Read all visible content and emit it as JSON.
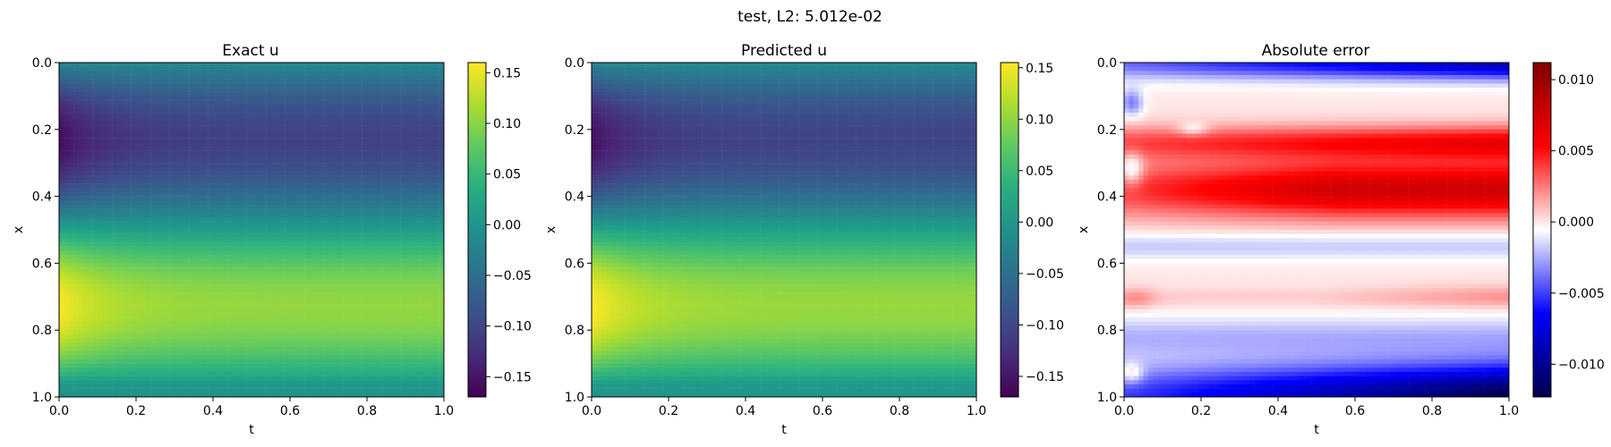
{
  "figure": {
    "suptitle": "test, L2: 5.012e-02"
  },
  "chart_data": [
    {
      "type": "heatmap",
      "title": "Exact u",
      "xlabel": "t",
      "ylabel": "x",
      "xlim": [
        0.0,
        1.0
      ],
      "ylim": [
        1.0,
        0.0
      ],
      "xticks": [
        "0.0",
        "0.2",
        "0.4",
        "0.6",
        "0.8",
        "1.0"
      ],
      "yticks": [
        "0.0",
        "0.2",
        "0.4",
        "0.6",
        "0.8",
        "1.0"
      ],
      "colormap": "viridis",
      "colorbar": {
        "range": [
          -0.17,
          0.16
        ],
        "ticks": [
          0.15,
          0.1,
          0.05,
          0.0,
          -0.05,
          -0.1,
          -0.15
        ],
        "tick_labels": [
          "0.15",
          "0.10",
          "0.05",
          "0.00",
          "−0.05",
          "−0.10",
          "−0.15"
        ]
      }
    },
    {
      "type": "heatmap",
      "title": "Predicted u",
      "xlabel": "t",
      "ylabel": "x",
      "xlim": [
        0.0,
        1.0
      ],
      "ylim": [
        1.0,
        0.0
      ],
      "xticks": [
        "0.0",
        "0.2",
        "0.4",
        "0.6",
        "0.8",
        "1.0"
      ],
      "yticks": [
        "0.0",
        "0.2",
        "0.4",
        "0.6",
        "0.8",
        "1.0"
      ],
      "colormap": "viridis",
      "colorbar": {
        "range": [
          -0.17,
          0.155
        ],
        "ticks": [
          0.15,
          0.1,
          0.05,
          0.0,
          -0.05,
          -0.1,
          -0.15
        ],
        "tick_labels": [
          "0.15",
          "0.10",
          "0.05",
          "0.00",
          "−0.05",
          "−0.10",
          "−0.15"
        ]
      }
    },
    {
      "type": "heatmap",
      "title": "Absolute error",
      "xlabel": "t",
      "ylabel": "x",
      "xlim": [
        0.0,
        1.0
      ],
      "ylim": [
        1.0,
        0.0
      ],
      "xticks": [
        "0.0",
        "0.2",
        "0.4",
        "0.6",
        "0.8",
        "1.0"
      ],
      "yticks": [
        "0.0",
        "0.2",
        "0.4",
        "0.6",
        "0.8",
        "1.0"
      ],
      "colormap": "seismic",
      "colorbar": {
        "range": [
          -0.0123,
          0.0112
        ],
        "ticks": [
          0.01,
          0.005,
          0.0,
          -0.005,
          -0.01
        ],
        "tick_labels": [
          "0.010",
          "0.005",
          "0.000",
          "−0.005",
          "−0.010"
        ]
      }
    }
  ]
}
